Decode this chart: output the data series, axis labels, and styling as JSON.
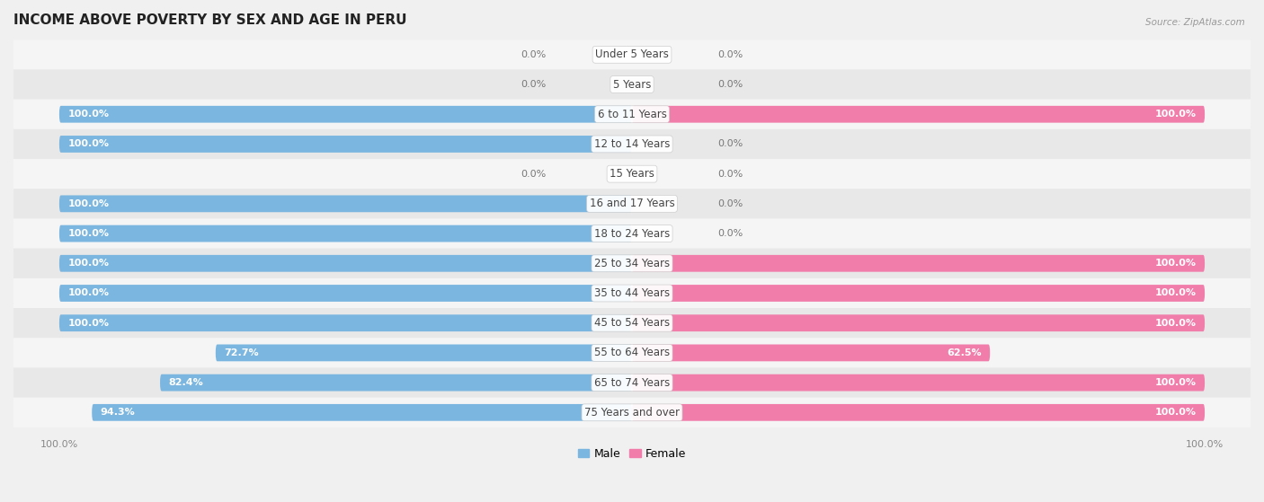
{
  "title": "INCOME ABOVE POVERTY BY SEX AND AGE IN PERU",
  "source": "Source: ZipAtlas.com",
  "categories": [
    "Under 5 Years",
    "5 Years",
    "6 to 11 Years",
    "12 to 14 Years",
    "15 Years",
    "16 and 17 Years",
    "18 to 24 Years",
    "25 to 34 Years",
    "35 to 44 Years",
    "45 to 54 Years",
    "55 to 64 Years",
    "65 to 74 Years",
    "75 Years and over"
  ],
  "male": [
    0.0,
    0.0,
    100.0,
    100.0,
    0.0,
    100.0,
    100.0,
    100.0,
    100.0,
    100.0,
    72.7,
    82.4,
    94.3
  ],
  "female": [
    0.0,
    0.0,
    100.0,
    0.0,
    0.0,
    0.0,
    0.0,
    100.0,
    100.0,
    100.0,
    62.5,
    100.0,
    100.0
  ],
  "male_color": "#7ab6e0",
  "female_color": "#f07daa",
  "bg_color": "#f0f0f0",
  "row_bg_even": "#e8e8e8",
  "row_bg_odd": "#f5f5f5",
  "title_fontsize": 11,
  "cat_fontsize": 8.5,
  "val_fontsize": 8,
  "bar_height": 0.55
}
